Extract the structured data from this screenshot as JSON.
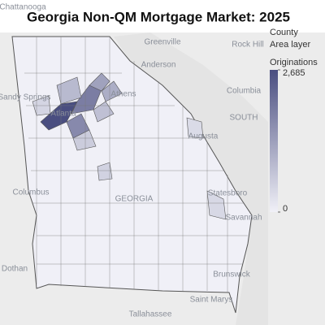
{
  "chart_data": {
    "type": "choropleth",
    "title": "Georgia Non-QM Mortgage Market: 2025",
    "legend_title": "County",
    "legend_subtitle": "Area layer",
    "value_label": "Originations",
    "clim": [
      0,
      2685
    ],
    "cticks": [
      0,
      {
        "value": 2685,
        "label": "2,685"
      }
    ],
    "colors": [
      "#f0f0f7",
      "#4a4e80"
    ],
    "values": [
      2685,
      1900,
      1700,
      1300,
      1100,
      900,
      800,
      600,
      500,
      450,
      400,
      350
    ],
    "places": [
      "Chattanooga",
      "Greenville",
      "Rock Hill",
      "Anderson",
      "Sandy Springs",
      "Atlanta",
      "Athens",
      "Columbia",
      "SOUTH",
      "Augusta",
      "Columbus",
      "GEORGIA",
      "Statesboro",
      "Savannah",
      "Dothan",
      "Brunswick",
      "Tallahassee",
      "Saint Marys"
    ]
  }
}
